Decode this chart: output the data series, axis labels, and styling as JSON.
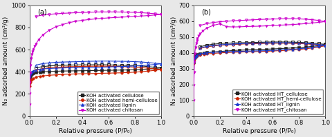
{
  "panel_a": {
    "label": "(a)",
    "ylabel": "N₂ adsorbed amount (cm³/g)",
    "xlabel": "Relative pressure (P/P₀)",
    "ylim": [
      0,
      1000
    ],
    "xlim": [
      0.0,
      1.0
    ],
    "yticks": [
      0,
      200,
      400,
      600,
      800,
      1000
    ],
    "xticks": [
      0.0,
      0.2,
      0.4,
      0.6,
      0.8,
      1.0
    ],
    "series": [
      {
        "name": "KOH activated cellulose",
        "color": "#222222",
        "adsorption_x": [
          0.001,
          0.003,
          0.006,
          0.01,
          0.015,
          0.02,
          0.03,
          0.05,
          0.08,
          0.1,
          0.15,
          0.2,
          0.25,
          0.3,
          0.35,
          0.4,
          0.45,
          0.5,
          0.55,
          0.6,
          0.65,
          0.7,
          0.75,
          0.8,
          0.85,
          0.9,
          0.95,
          1.0
        ],
        "adsorption_y": [
          340,
          355,
          365,
          372,
          378,
          382,
          387,
          393,
          397,
          399,
          402,
          404,
          406,
          407,
          408,
          409,
          410,
          411,
          412,
          413,
          414,
          415,
          416,
          418,
          420,
          424,
          428,
          435
        ],
        "desorption_x": [
          1.0,
          0.95,
          0.9,
          0.85,
          0.8,
          0.75,
          0.7,
          0.65,
          0.6,
          0.55,
          0.5,
          0.45,
          0.4,
          0.35,
          0.3,
          0.25,
          0.2,
          0.15,
          0.1,
          0.05
        ],
        "desorption_y": [
          435,
          440,
          446,
          452,
          455,
          457,
          458,
          460,
          462,
          463,
          463,
          462,
          462,
          461,
          460,
          458,
          456,
          452,
          446,
          435
        ],
        "marker_ads": "s",
        "marker_des": "s"
      },
      {
        "name": "KOH activated hemi-cellulose",
        "color": "#cc2200",
        "adsorption_x": [
          0.001,
          0.003,
          0.006,
          0.01,
          0.015,
          0.02,
          0.03,
          0.05,
          0.08,
          0.1,
          0.15,
          0.2,
          0.25,
          0.3,
          0.35,
          0.4,
          0.45,
          0.5,
          0.55,
          0.6,
          0.65,
          0.7,
          0.75,
          0.8,
          0.85,
          0.9,
          0.95,
          1.0
        ],
        "adsorption_y": [
          270,
          295,
          310,
          320,
          328,
          333,
          340,
          350,
          358,
          362,
          368,
          372,
          375,
          378,
          380,
          382,
          383,
          384,
          386,
          387,
          389,
          390,
          393,
          396,
          400,
          406,
          412,
          420
        ],
        "desorption_x": [
          1.0,
          0.95,
          0.9,
          0.85,
          0.8,
          0.75,
          0.7,
          0.65,
          0.6,
          0.55,
          0.5,
          0.45,
          0.4,
          0.35,
          0.3,
          0.25,
          0.2,
          0.15,
          0.1,
          0.05
        ],
        "desorption_y": [
          420,
          425,
          432,
          437,
          441,
          444,
          446,
          448,
          449,
          450,
          450,
          449,
          448,
          446,
          445,
          442,
          440,
          435,
          428,
          415
        ],
        "marker_ads": "o",
        "marker_des": "o"
      },
      {
        "name": "KOH activated lignin",
        "color": "#1a3acc",
        "adsorption_x": [
          0.001,
          0.003,
          0.006,
          0.01,
          0.015,
          0.02,
          0.03,
          0.05,
          0.08,
          0.1,
          0.15,
          0.2,
          0.25,
          0.3,
          0.35,
          0.4,
          0.45,
          0.5,
          0.55,
          0.6,
          0.65,
          0.7,
          0.75,
          0.8,
          0.85,
          0.9,
          0.95,
          1.0
        ],
        "adsorption_y": [
          355,
          370,
          382,
          390,
          397,
          402,
          408,
          416,
          422,
          425,
          429,
          432,
          434,
          436,
          437,
          438,
          439,
          440,
          441,
          443,
          445,
          447,
          449,
          452,
          455,
          460,
          465,
          472
        ],
        "desorption_x": [
          1.0,
          0.95,
          0.9,
          0.85,
          0.8,
          0.75,
          0.7,
          0.65,
          0.6,
          0.55,
          0.5,
          0.45,
          0.4,
          0.35,
          0.3,
          0.25,
          0.2,
          0.15,
          0.1,
          0.05
        ],
        "desorption_y": [
          472,
          477,
          483,
          488,
          491,
          493,
          494,
          495,
          496,
          496,
          495,
          494,
          492,
          490,
          489,
          487,
          485,
          480,
          473,
          460
        ],
        "marker_ads": "^",
        "marker_des": "^"
      },
      {
        "name": "KOH activated chitosan",
        "color": "#cc00cc",
        "adsorption_x": [
          0.001,
          0.003,
          0.005,
          0.007,
          0.01,
          0.015,
          0.02,
          0.025,
          0.03,
          0.04,
          0.05,
          0.07,
          0.1,
          0.15,
          0.2,
          0.25,
          0.3,
          0.35,
          0.4,
          0.45,
          0.5,
          0.55,
          0.6,
          0.65,
          0.7,
          0.75,
          0.8,
          0.85,
          0.9,
          0.95,
          1.0
        ],
        "adsorption_y": [
          100,
          200,
          300,
          390,
          460,
          520,
          558,
          583,
          602,
          630,
          652,
          690,
          730,
          775,
          805,
          825,
          843,
          855,
          864,
          871,
          877,
          882,
          886,
          890,
          893,
          896,
          899,
          903,
          907,
          912,
          918
        ],
        "desorption_x": [
          1.0,
          0.95,
          0.9,
          0.85,
          0.8,
          0.75,
          0.7,
          0.65,
          0.6,
          0.55,
          0.5,
          0.45,
          0.4,
          0.35,
          0.3,
          0.25,
          0.2,
          0.15,
          0.1,
          0.05
        ],
        "desorption_y": [
          918,
          924,
          929,
          933,
          936,
          938,
          939,
          940,
          940,
          940,
          939,
          937,
          935,
          933,
          930,
          927,
          923,
          918,
          912,
          900
        ],
        "marker_ads": "v",
        "marker_des": "v"
      }
    ]
  },
  "panel_b": {
    "label": "(b)",
    "ylabel": "N₂ adsorbed amount (cm³/g)",
    "xlabel": "Relative pressure (P/P₀)",
    "ylim": [
      0,
      700
    ],
    "xlim": [
      0.0,
      1.0
    ],
    "yticks": [
      0,
      100,
      200,
      300,
      400,
      500,
      600,
      700
    ],
    "xticks": [
      0.0,
      0.2,
      0.4,
      0.6,
      0.8,
      1.0
    ],
    "series": [
      {
        "name": "KOH activated HT_cellulose",
        "color": "#222222",
        "adsorption_x": [
          0.001,
          0.003,
          0.006,
          0.01,
          0.015,
          0.02,
          0.03,
          0.05,
          0.08,
          0.1,
          0.15,
          0.2,
          0.25,
          0.3,
          0.35,
          0.4,
          0.45,
          0.5,
          0.55,
          0.6,
          0.65,
          0.7,
          0.75,
          0.8,
          0.85,
          0.9,
          0.95,
          1.0
        ],
        "adsorption_y": [
          342,
          358,
          368,
          375,
          380,
          384,
          389,
          395,
          399,
          401,
          405,
          408,
          411,
          414,
          416,
          418,
          420,
          421,
          422,
          424,
          426,
          428,
          430,
          433,
          436,
          440,
          445,
          453
        ],
        "desorption_x": [
          1.0,
          0.95,
          0.9,
          0.85,
          0.8,
          0.75,
          0.7,
          0.65,
          0.6,
          0.55,
          0.5,
          0.45,
          0.4,
          0.35,
          0.3,
          0.25,
          0.2,
          0.15,
          0.1,
          0.05
        ],
        "desorption_y": [
          453,
          457,
          461,
          464,
          466,
          467,
          468,
          468,
          468,
          467,
          466,
          465,
          464,
          463,
          462,
          460,
          458,
          454,
          448,
          438
        ],
        "marker_ads": "s",
        "marker_des": "s"
      },
      {
        "name": "KOH activated HT_hemi-cellulose",
        "color": "#cc2200",
        "adsorption_x": [
          0.001,
          0.003,
          0.006,
          0.01,
          0.015,
          0.02,
          0.03,
          0.05,
          0.08,
          0.1,
          0.15,
          0.2,
          0.25,
          0.3,
          0.35,
          0.4,
          0.45,
          0.5,
          0.55,
          0.6,
          0.65,
          0.7,
          0.75,
          0.8,
          0.85,
          0.9,
          0.95,
          1.0
        ],
        "adsorption_y": [
          335,
          350,
          360,
          367,
          372,
          375,
          380,
          386,
          391,
          393,
          396,
          399,
          401,
          403,
          404,
          406,
          407,
          408,
          409,
          411,
          413,
          415,
          418,
          421,
          425,
          430,
          436,
          444
        ],
        "desorption_x": [
          1.0,
          0.95,
          0.9,
          0.85,
          0.8,
          0.75,
          0.7,
          0.65,
          0.6,
          0.55,
          0.5,
          0.45,
          0.4,
          0.35,
          0.3,
          0.25,
          0.2,
          0.15,
          0.1,
          0.05
        ],
        "desorption_y": [
          444,
          449,
          453,
          456,
          458,
          459,
          460,
          460,
          460,
          459,
          458,
          457,
          456,
          454,
          452,
          450,
          447,
          443,
          437,
          427
        ],
        "marker_ads": "o",
        "marker_des": "o"
      },
      {
        "name": "KOH activated HT_lignin",
        "color": "#1a3acc",
        "adsorption_x": [
          0.001,
          0.003,
          0.006,
          0.01,
          0.015,
          0.02,
          0.03,
          0.05,
          0.08,
          0.1,
          0.15,
          0.2,
          0.25,
          0.3,
          0.35,
          0.4,
          0.45,
          0.5,
          0.55,
          0.6,
          0.65,
          0.7,
          0.75,
          0.8,
          0.85,
          0.9,
          0.95,
          1.0
        ],
        "adsorption_y": [
          340,
          355,
          366,
          373,
          378,
          382,
          387,
          393,
          398,
          400,
          403,
          405,
          407,
          408,
          409,
          410,
          411,
          412,
          413,
          415,
          417,
          420,
          422,
          425,
          429,
          434,
          440,
          448
        ],
        "desorption_x": [
          1.0,
          0.95,
          0.9,
          0.85,
          0.8,
          0.75,
          0.7,
          0.65,
          0.6,
          0.55,
          0.5,
          0.45,
          0.4,
          0.35,
          0.3,
          0.25,
          0.2,
          0.15,
          0.1,
          0.05
        ],
        "desorption_y": [
          448,
          452,
          456,
          459,
          461,
          462,
          463,
          463,
          463,
          462,
          461,
          460,
          459,
          457,
          455,
          453,
          450,
          446,
          440,
          430
        ],
        "marker_ads": "^",
        "marker_des": "^"
      },
      {
        "name": "KOH activated HT_chitosan",
        "color": "#cc00cc",
        "adsorption_x": [
          0.001,
          0.003,
          0.005,
          0.007,
          0.01,
          0.015,
          0.02,
          0.025,
          0.03,
          0.04,
          0.05,
          0.07,
          0.1,
          0.15,
          0.2,
          0.25,
          0.3,
          0.35,
          0.4,
          0.45,
          0.5,
          0.55,
          0.6,
          0.65,
          0.7,
          0.75,
          0.8,
          0.85,
          0.9,
          0.95,
          1.0
        ],
        "adsorption_y": [
          100,
          195,
          275,
          340,
          395,
          435,
          458,
          475,
          490,
          507,
          518,
          537,
          556,
          573,
          583,
          565,
          563,
          564,
          566,
          567,
          568,
          570,
          572,
          574,
          576,
          578,
          581,
          584,
          588,
          592,
          597
        ],
        "desorption_x": [
          1.0,
          0.95,
          0.9,
          0.85,
          0.8,
          0.75,
          0.7,
          0.65,
          0.6,
          0.55,
          0.5,
          0.45,
          0.4,
          0.35,
          0.3,
          0.25,
          0.2,
          0.15,
          0.1,
          0.05
        ],
        "desorption_y": [
          597,
          604,
          609,
          612,
          614,
          615,
          615,
          614,
          613,
          612,
          610,
          608,
          606,
          604,
          602,
          599,
          596,
          591,
          584,
          572
        ],
        "marker_ads": "v",
        "marker_des": "v"
      }
    ]
  },
  "figure_bg": "#e8e8e8",
  "axes_bg": "#ffffff",
  "font_size": 6,
  "label_font_size": 6.5,
  "legend_font_size": 5,
  "marker_size": 2.5,
  "line_width": 0.8
}
